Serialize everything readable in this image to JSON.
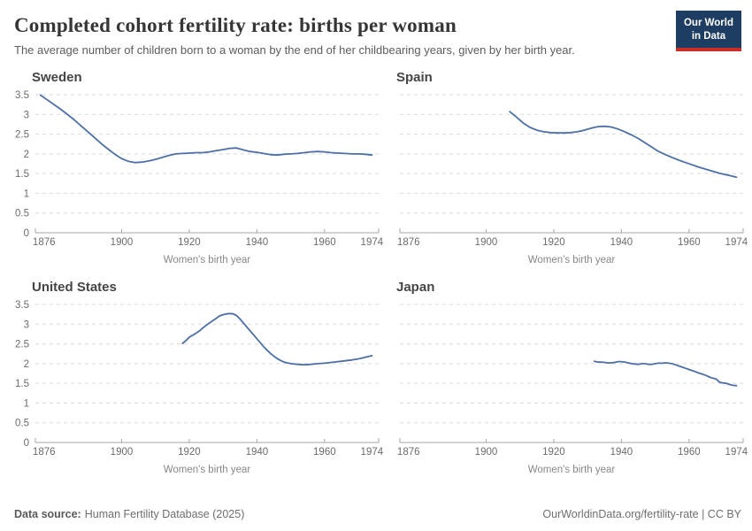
{
  "header": {
    "title": "Completed cohort fertility rate: births per woman",
    "subtitle": "The average number of children born to a woman by the end of her childbearing years, given by her birth year.",
    "logo": {
      "line1": "Our World",
      "line2": "in Data",
      "bg_color": "#1d3d63",
      "accent_color": "#cb2d27"
    }
  },
  "footer": {
    "source_label": "Data source:",
    "source_value": "Human Fertility Database (2025)",
    "attribution": "OurWorldinData.org/fertility-rate | CC BY"
  },
  "chart_data": {
    "type": "line",
    "title": "Completed cohort fertility rate: births per woman",
    "x_axis_label": "Women's birth year",
    "x_ticks": [
      1876,
      1900,
      1920,
      1940,
      1960,
      1974
    ],
    "x_range": [
      1876,
      1974
    ],
    "y_ticks": [
      0,
      0.5,
      1,
      1.5,
      2,
      2.5,
      3,
      3.5
    ],
    "y_range": [
      0,
      3.5
    ],
    "grid": true,
    "legend": "none (panel titles act as labels)",
    "line_color": "#4c6fa5",
    "panels": [
      {
        "title": "Sweden",
        "show_y_labels": true,
        "points": [
          [
            1876,
            3.49
          ],
          [
            1878,
            3.37
          ],
          [
            1880,
            3.25
          ],
          [
            1882,
            3.13
          ],
          [
            1884,
            3.0
          ],
          [
            1886,
            2.86
          ],
          [
            1888,
            2.71
          ],
          [
            1890,
            2.56
          ],
          [
            1892,
            2.41
          ],
          [
            1894,
            2.26
          ],
          [
            1896,
            2.12
          ],
          [
            1898,
            1.99
          ],
          [
            1900,
            1.88
          ],
          [
            1902,
            1.81
          ],
          [
            1904,
            1.78
          ],
          [
            1906,
            1.79
          ],
          [
            1908,
            1.82
          ],
          [
            1910,
            1.86
          ],
          [
            1912,
            1.91
          ],
          [
            1914,
            1.96
          ],
          [
            1916,
            2.0
          ],
          [
            1918,
            2.01
          ],
          [
            1920,
            2.02
          ],
          [
            1922,
            2.03
          ],
          [
            1924,
            2.03
          ],
          [
            1926,
            2.05
          ],
          [
            1928,
            2.08
          ],
          [
            1930,
            2.11
          ],
          [
            1932,
            2.14
          ],
          [
            1934,
            2.15
          ],
          [
            1936,
            2.1
          ],
          [
            1938,
            2.06
          ],
          [
            1940,
            2.04
          ],
          [
            1942,
            2.01
          ],
          [
            1944,
            1.98
          ],
          [
            1946,
            1.97
          ],
          [
            1948,
            1.99
          ],
          [
            1950,
            2.0
          ],
          [
            1952,
            2.01
          ],
          [
            1954,
            2.03
          ],
          [
            1956,
            2.05
          ],
          [
            1958,
            2.06
          ],
          [
            1960,
            2.05
          ],
          [
            1962,
            2.03
          ],
          [
            1964,
            2.02
          ],
          [
            1966,
            2.01
          ],
          [
            1968,
            2.0
          ],
          [
            1970,
            2.0
          ],
          [
            1972,
            1.99
          ],
          [
            1974,
            1.97
          ]
        ]
      },
      {
        "title": "Spain",
        "show_y_labels": false,
        "points": [
          [
            1907,
            3.07
          ],
          [
            1909,
            2.93
          ],
          [
            1911,
            2.78
          ],
          [
            1913,
            2.67
          ],
          [
            1915,
            2.6
          ],
          [
            1917,
            2.56
          ],
          [
            1919,
            2.54
          ],
          [
            1921,
            2.53
          ],
          [
            1923,
            2.53
          ],
          [
            1925,
            2.54
          ],
          [
            1927,
            2.56
          ],
          [
            1929,
            2.6
          ],
          [
            1931,
            2.65
          ],
          [
            1933,
            2.69
          ],
          [
            1935,
            2.7
          ],
          [
            1937,
            2.68
          ],
          [
            1939,
            2.63
          ],
          [
            1941,
            2.56
          ],
          [
            1943,
            2.48
          ],
          [
            1945,
            2.39
          ],
          [
            1947,
            2.28
          ],
          [
            1949,
            2.17
          ],
          [
            1951,
            2.06
          ],
          [
            1953,
            1.98
          ],
          [
            1955,
            1.91
          ],
          [
            1957,
            1.84
          ],
          [
            1959,
            1.78
          ],
          [
            1961,
            1.72
          ],
          [
            1963,
            1.66
          ],
          [
            1965,
            1.61
          ],
          [
            1967,
            1.56
          ],
          [
            1969,
            1.51
          ],
          [
            1971,
            1.47
          ],
          [
            1973,
            1.43
          ],
          [
            1974,
            1.41
          ]
        ]
      },
      {
        "title": "United States",
        "show_y_labels": true,
        "points": [
          [
            1918,
            2.51
          ],
          [
            1919,
            2.58
          ],
          [
            1920,
            2.67
          ],
          [
            1921,
            2.72
          ],
          [
            1922,
            2.77
          ],
          [
            1923,
            2.83
          ],
          [
            1924,
            2.9
          ],
          [
            1925,
            2.97
          ],
          [
            1926,
            3.03
          ],
          [
            1927,
            3.09
          ],
          [
            1928,
            3.15
          ],
          [
            1929,
            3.21
          ],
          [
            1930,
            3.24
          ],
          [
            1931,
            3.26
          ],
          [
            1932,
            3.27
          ],
          [
            1933,
            3.26
          ],
          [
            1934,
            3.22
          ],
          [
            1935,
            3.13
          ],
          [
            1936,
            3.03
          ],
          [
            1937,
            2.93
          ],
          [
            1938,
            2.83
          ],
          [
            1939,
            2.73
          ],
          [
            1940,
            2.63
          ],
          [
            1941,
            2.53
          ],
          [
            1942,
            2.43
          ],
          [
            1943,
            2.34
          ],
          [
            1944,
            2.26
          ],
          [
            1945,
            2.19
          ],
          [
            1946,
            2.13
          ],
          [
            1947,
            2.08
          ],
          [
            1948,
            2.04
          ],
          [
            1950,
            2.0
          ],
          [
            1952,
            1.98
          ],
          [
            1954,
            1.97
          ],
          [
            1956,
            1.98
          ],
          [
            1958,
            2.0
          ],
          [
            1960,
            2.01
          ],
          [
            1962,
            2.03
          ],
          [
            1964,
            2.05
          ],
          [
            1966,
            2.07
          ],
          [
            1968,
            2.09
          ],
          [
            1970,
            2.12
          ],
          [
            1972,
            2.16
          ],
          [
            1974,
            2.2
          ]
        ]
      },
      {
        "title": "Japan",
        "show_y_labels": false,
        "points": [
          [
            1932,
            2.06
          ],
          [
            1933,
            2.04
          ],
          [
            1934,
            2.04
          ],
          [
            1935,
            2.03
          ],
          [
            1936,
            2.02
          ],
          [
            1937,
            2.02
          ],
          [
            1938,
            2.03
          ],
          [
            1939,
            2.05
          ],
          [
            1940,
            2.05
          ],
          [
            1941,
            2.04
          ],
          [
            1942,
            2.02
          ],
          [
            1943,
            2.0
          ],
          [
            1944,
            1.99
          ],
          [
            1945,
            1.98
          ],
          [
            1946,
            2.0
          ],
          [
            1947,
            2.0
          ],
          [
            1948,
            1.98
          ],
          [
            1949,
            1.98
          ],
          [
            1950,
            2.0
          ],
          [
            1951,
            2.01
          ],
          [
            1952,
            2.01
          ],
          [
            1953,
            2.02
          ],
          [
            1954,
            2.01
          ],
          [
            1955,
            2.0
          ],
          [
            1956,
            1.97
          ],
          [
            1957,
            1.94
          ],
          [
            1958,
            1.91
          ],
          [
            1959,
            1.88
          ],
          [
            1960,
            1.85
          ],
          [
            1961,
            1.82
          ],
          [
            1962,
            1.79
          ],
          [
            1963,
            1.76
          ],
          [
            1964,
            1.73
          ],
          [
            1965,
            1.7
          ],
          [
            1966,
            1.66
          ],
          [
            1967,
            1.63
          ],
          [
            1968,
            1.61
          ],
          [
            1969,
            1.53
          ],
          [
            1970,
            1.51
          ],
          [
            1971,
            1.5
          ],
          [
            1972,
            1.47
          ],
          [
            1973,
            1.45
          ],
          [
            1974,
            1.44
          ]
        ]
      }
    ]
  }
}
